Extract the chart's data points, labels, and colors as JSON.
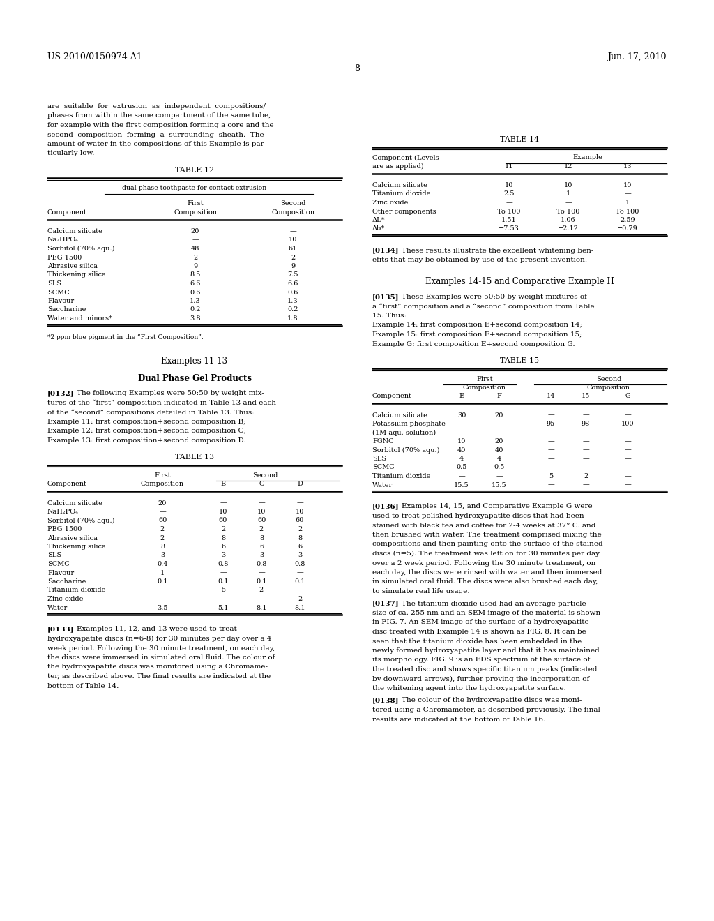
{
  "page_header_left": "US 2010/0150974 A1",
  "page_header_right": "Jun. 17, 2010",
  "page_number": "8",
  "background_color": "#ffffff",
  "body_font_size": 7.5,
  "table_font_size": 7.0,
  "header_font_size": 8.0,
  "section_font_size": 8.5
}
